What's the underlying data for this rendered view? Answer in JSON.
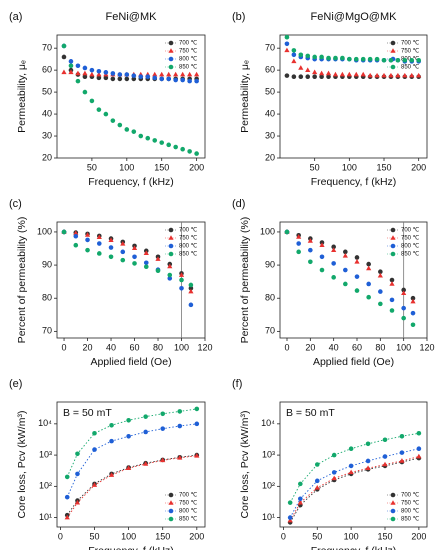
{
  "chart_data": [
    {
      "type": "scatter",
      "panel": "(a)",
      "title": "FeNi@MK",
      "xlabel": "Frequency, f (kHz)",
      "ylabel": "Permeability, μₑ",
      "x": [
        10,
        20,
        30,
        40,
        50,
        60,
        70,
        80,
        90,
        100,
        110,
        120,
        130,
        140,
        150,
        160,
        170,
        180,
        190,
        200
      ],
      "series": [
        {
          "name": "700 ℃",
          "color": "#333333",
          "marker": "circle",
          "values": [
            66,
            60,
            58,
            57,
            57,
            56.5,
            56.5,
            56,
            56,
            56,
            56,
            56,
            56,
            56,
            56,
            56,
            56,
            56,
            56,
            56
          ]
        },
        {
          "name": "750 ℃",
          "color": "#e8312f",
          "marker": "triangle",
          "values": [
            59,
            59,
            58.5,
            58.5,
            58,
            58,
            58,
            58,
            58,
            58,
            58,
            58,
            58,
            58,
            58,
            58,
            58,
            58,
            58,
            58
          ]
        },
        {
          "name": "800 ℃",
          "color": "#1f5fd6",
          "marker": "circle",
          "values": [
            71,
            64,
            62,
            61,
            60,
            59.5,
            59,
            58.5,
            58,
            58,
            57.5,
            57,
            57,
            56.5,
            56,
            56,
            55.5,
            55.5,
            55,
            55
          ]
        },
        {
          "name": "850 ℃",
          "color": "#12a86b",
          "marker": "circle",
          "values": [
            71,
            62,
            55,
            50,
            46,
            42,
            40,
            37,
            35,
            33,
            32,
            30,
            29,
            28,
            27,
            26,
            25,
            24,
            23,
            22
          ]
        }
      ],
      "xlim": [
        0,
        212
      ],
      "ylim": [
        20,
        76
      ],
      "xticks": [
        50,
        100,
        150,
        200
      ],
      "yticks": [
        20,
        30,
        40,
        50,
        60,
        70
      ],
      "legend": "upper right"
    },
    {
      "type": "scatter",
      "panel": "(b)",
      "title": "FeNi@MgO@MK",
      "xlabel": "Frequency, f (kHz)",
      "ylabel": "Permeability, μₑ",
      "x": [
        10,
        20,
        30,
        40,
        50,
        60,
        70,
        80,
        90,
        100,
        110,
        120,
        130,
        140,
        150,
        160,
        170,
        180,
        190,
        200
      ],
      "series": [
        {
          "name": "700 ℃",
          "color": "#333333",
          "marker": "circle",
          "values": [
            57.5,
            57,
            57,
            57,
            57,
            57,
            57,
            57,
            57,
            57,
            57,
            57,
            57,
            57,
            57,
            57,
            57,
            57,
            57,
            57
          ]
        },
        {
          "name": "750 ℃",
          "color": "#e8312f",
          "marker": "triangle",
          "values": [
            69,
            64,
            61,
            60,
            59,
            58.5,
            58.5,
            58,
            58,
            58,
            58,
            58,
            57.5,
            57.5,
            57.5,
            57.5,
            57.5,
            57.5,
            57.5,
            57.5
          ]
        },
        {
          "name": "800 ℃",
          "color": "#1f5fd6",
          "marker": "circle",
          "values": [
            72,
            67,
            66,
            65.5,
            65,
            65,
            65,
            65,
            65,
            65,
            64.5,
            64.5,
            64.5,
            64.5,
            64.5,
            64.5,
            64.5,
            64,
            64,
            64
          ]
        },
        {
          "name": "850 ℃",
          "color": "#12a86b",
          "marker": "circle",
          "values": [
            75,
            69,
            67,
            66.5,
            66,
            66,
            65.5,
            65.5,
            65.5,
            65,
            65,
            65,
            65,
            65,
            64.5,
            64.5,
            64.5,
            64.5,
            64.5,
            64.5
          ]
        }
      ],
      "xlim": [
        0,
        212
      ],
      "ylim": [
        20,
        76
      ],
      "xticks": [
        50,
        100,
        150,
        200
      ],
      "yticks": [
        20,
        30,
        40,
        50,
        60,
        70
      ],
      "legend": "upper right"
    },
    {
      "type": "scatter",
      "panel": "(c)",
      "xlabel": "Applied field (Oe)",
      "ylabel": "Percent of permeability (%)",
      "x": [
        0,
        10,
        20,
        30,
        40,
        50,
        60,
        70,
        80,
        90,
        100,
        108
      ],
      "series": [
        {
          "name": "700 ℃",
          "color": "#333333",
          "marker": "circle",
          "values": [
            100,
            99.8,
            99.4,
            98.8,
            98,
            97,
            95.8,
            94.3,
            92.5,
            90.3,
            87.5,
            83
          ]
        },
        {
          "name": "750 ℃",
          "color": "#e8312f",
          "marker": "triangle",
          "values": [
            100,
            99.6,
            99.1,
            98.4,
            97.5,
            96.4,
            95.1,
            93.6,
            91.8,
            89.6,
            87,
            82
          ]
        },
        {
          "name": "800 ℃",
          "color": "#1f5fd6",
          "marker": "circle",
          "values": [
            100,
            98.7,
            97.6,
            96.5,
            95.3,
            94,
            92.5,
            90.7,
            88.6,
            86,
            83,
            78
          ]
        },
        {
          "name": "850 ℃",
          "color": "#12a86b",
          "marker": "circle",
          "values": [
            100,
            96,
            94.5,
            93.5,
            92.5,
            91.5,
            90.5,
            89.5,
            88.3,
            87,
            85.5,
            84
          ]
        }
      ],
      "xlim": [
        -6,
        120
      ],
      "ylim": [
        68,
        103
      ],
      "xticks": [
        0,
        20,
        40,
        60,
        80,
        100,
        120
      ],
      "yticks": [
        70,
        80,
        90,
        100
      ],
      "vline": 100,
      "legend": "upper right"
    },
    {
      "type": "scatter",
      "panel": "(d)",
      "xlabel": "Applied field (Oe)",
      "ylabel": "Percent of permeability (%)",
      "x": [
        0,
        10,
        20,
        30,
        40,
        50,
        60,
        70,
        80,
        90,
        100,
        108
      ],
      "series": [
        {
          "name": "700 ℃",
          "color": "#333333",
          "marker": "circle",
          "values": [
            100,
            99,
            98,
            96.8,
            95.5,
            94,
            92.3,
            90.3,
            88,
            85.5,
            82.5,
            80
          ]
        },
        {
          "name": "750 ℃",
          "color": "#e8312f",
          "marker": "triangle",
          "values": [
            100,
            98.5,
            97.3,
            96,
            94.5,
            92.8,
            91,
            89,
            86.8,
            84.3,
            81.5,
            79
          ]
        },
        {
          "name": "800 ℃",
          "color": "#1f5fd6",
          "marker": "circle",
          "values": [
            100,
            96.5,
            94.5,
            92.5,
            90.5,
            88.5,
            86.5,
            84.3,
            82,
            79.5,
            77,
            75.5
          ]
        },
        {
          "name": "850 ℃",
          "color": "#12a86b",
          "marker": "circle",
          "values": [
            100,
            94,
            91,
            88.5,
            86.3,
            84.3,
            82.3,
            80.3,
            78.3,
            76.3,
            74,
            72
          ]
        }
      ],
      "xlim": [
        -6,
        120
      ],
      "ylim": [
        68,
        103
      ],
      "xticks": [
        0,
        20,
        40,
        60,
        80,
        100,
        120
      ],
      "yticks": [
        70,
        80,
        90,
        100
      ],
      "vline": 100,
      "legend": "upper right"
    },
    {
      "type": "line",
      "panel": "(e)",
      "annotation": "B = 50 mT",
      "xlabel": "Frequency, f (kHz)",
      "ylabel": "Core loss, Pcv (kW/m³)",
      "x": [
        10,
        25,
        50,
        75,
        100,
        125,
        150,
        175,
        200
      ],
      "series": [
        {
          "name": "700 ℃",
          "color": "#333333",
          "marker": "circle",
          "values": [
            12,
            35,
            120,
            250,
            400,
            550,
            700,
            850,
            1000
          ]
        },
        {
          "name": "750 ℃",
          "color": "#e8312f",
          "marker": "triangle",
          "values": [
            10,
            30,
            110,
            230,
            380,
            520,
            680,
            820,
            950
          ]
        },
        {
          "name": "800 ℃",
          "color": "#1f5fd6",
          "marker": "circle",
          "values": [
            45,
            250,
            1500,
            2800,
            4000,
            5500,
            7000,
            8500,
            10000
          ]
        },
        {
          "name": "850 ℃",
          "color": "#12a86b",
          "marker": "circle",
          "values": [
            200,
            1100,
            5000,
            9000,
            13000,
            17000,
            21000,
            25000,
            30000
          ]
        }
      ],
      "xlim": [
        -5,
        212
      ],
      "ylim": [
        5,
        50000
      ],
      "log_y": true,
      "xticks": [
        0,
        50,
        100,
        150,
        200
      ],
      "yticks": [
        {
          "value": 10,
          "label": "10¹"
        },
        {
          "value": 100,
          "label": "10²"
        },
        {
          "value": 1000,
          "label": "10³"
        },
        {
          "value": 10000,
          "label": "10⁴"
        }
      ],
      "legend": "lower right"
    },
    {
      "type": "line",
      "panel": "(f)",
      "annotation": "B = 50 mT",
      "xlabel": "Frequency, f (kHz)",
      "ylabel": "Core loss, Pcv (kW/m³)",
      "x": [
        10,
        25,
        50,
        75,
        100,
        125,
        150,
        175,
        200
      ],
      "series": [
        {
          "name": "700 ℃",
          "color": "#333333",
          "marker": "circle",
          "values": [
            7,
            25,
            80,
            160,
            250,
            350,
            450,
            600,
            800
          ]
        },
        {
          "name": "750 ℃",
          "color": "#e8312f",
          "marker": "triangle",
          "values": [
            8,
            30,
            90,
            180,
            280,
            380,
            500,
            650,
            900
          ]
        },
        {
          "name": "800 ℃",
          "color": "#1f5fd6",
          "marker": "circle",
          "values": [
            10,
            40,
            150,
            280,
            450,
            650,
            900,
            1200,
            1600
          ]
        },
        {
          "name": "850 ℃",
          "color": "#12a86b",
          "marker": "circle",
          "values": [
            30,
            120,
            500,
            1000,
            1600,
            2300,
            3100,
            4000,
            5000
          ]
        }
      ],
      "xlim": [
        -5,
        212
      ],
      "ylim": [
        5,
        50000
      ],
      "log_y": true,
      "xticks": [
        0,
        50,
        100,
        150,
        200
      ],
      "yticks": [
        {
          "value": 10,
          "label": "10¹"
        },
        {
          "value": 100,
          "label": "10²"
        },
        {
          "value": 1000,
          "label": "10³"
        },
        {
          "value": 10000,
          "label": "10⁴"
        }
      ],
      "legend": "lower right"
    }
  ]
}
